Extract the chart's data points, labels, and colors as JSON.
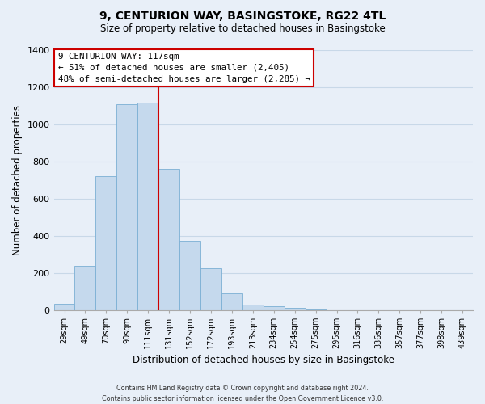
{
  "title1": "9, CENTURION WAY, BASINGSTOKE, RG22 4TL",
  "title2": "Size of property relative to detached houses in Basingstoke",
  "xlabel": "Distribution of detached houses by size in Basingstoke",
  "ylabel": "Number of detached properties",
  "footnote": "Contains HM Land Registry data © Crown copyright and database right 2024.\nContains public sector information licensed under the Open Government Licence v3.0.",
  "bar_labels": [
    "29sqm",
    "49sqm",
    "70sqm",
    "90sqm",
    "111sqm",
    "131sqm",
    "152sqm",
    "172sqm",
    "193sqm",
    "213sqm",
    "234sqm",
    "254sqm",
    "275sqm",
    "295sqm",
    "316sqm",
    "336sqm",
    "357sqm",
    "377sqm",
    "398sqm",
    "439sqm"
  ],
  "bar_values": [
    35,
    240,
    720,
    1105,
    1115,
    760,
    375,
    228,
    90,
    30,
    20,
    15,
    5,
    0,
    0,
    0,
    0,
    0,
    0,
    0
  ],
  "bar_color": "#c5d9ed",
  "bar_edge_color": "#7bafd4",
  "vline_x_idx": 4.5,
  "vline_color": "#cc0000",
  "annotation_title": "9 CENTURION WAY: 117sqm",
  "annotation_line1": "← 51% of detached houses are smaller (2,405)",
  "annotation_line2": "48% of semi-detached houses are larger (2,285) →",
  "annotation_box_color": "#ffffff",
  "annotation_box_edge": "#cc0000",
  "ylim": [
    0,
    1400
  ],
  "yticks": [
    0,
    200,
    400,
    600,
    800,
    1000,
    1200,
    1400
  ],
  "grid_color": "#c8d8e8",
  "background_color": "#e8eff8"
}
